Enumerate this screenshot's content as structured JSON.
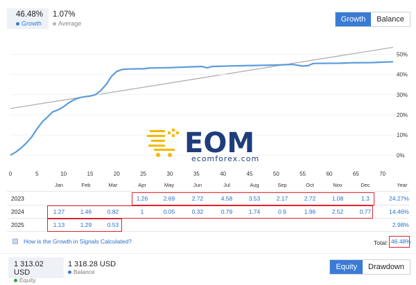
{
  "stats": {
    "growth": {
      "value": "46.48%",
      "label": "Growth"
    },
    "average": {
      "value": "1.07%",
      "label": "Average"
    }
  },
  "top_toggle": {
    "growth": "Growth",
    "balance": "Balance",
    "active": "Growth"
  },
  "bottom_toggle": {
    "equity": "Equity",
    "drawdown": "Drawdown",
    "active": "Equity"
  },
  "colors": {
    "accent": "#3a7bd5",
    "growth_line": "#5b9bdc",
    "trend_line": "#b0b0b0",
    "highlight": "#d9232e"
  },
  "watermark": {
    "text": "EOM",
    "subtext": "ecomforex.com"
  },
  "chart_data": {
    "type": "line",
    "x_ticks": [
      0,
      5,
      10,
      15,
      20,
      25,
      30,
      35,
      40,
      45,
      50,
      55,
      60,
      65,
      70
    ],
    "y_ticks": [
      "50%",
      "40%",
      "30%",
      "20%",
      "10%",
      "0%"
    ],
    "xlim": [
      0,
      72
    ],
    "ylim": [
      -3,
      55
    ],
    "series": [
      {
        "values": [
          [
            0,
            0
          ],
          [
            1,
            1.5
          ],
          [
            2,
            3.5
          ],
          [
            3,
            6
          ],
          [
            4,
            9
          ],
          [
            5,
            13
          ],
          [
            6,
            16.5
          ],
          [
            7,
            19
          ],
          [
            8,
            21.5
          ],
          [
            9,
            22.5
          ],
          [
            10,
            24
          ],
          [
            11,
            26
          ],
          [
            12,
            27.5
          ],
          [
            13,
            28.5
          ],
          [
            14,
            29
          ],
          [
            15,
            29.3
          ],
          [
            16,
            30
          ],
          [
            17,
            32
          ],
          [
            18,
            35
          ],
          [
            19,
            39
          ],
          [
            20,
            41.5
          ],
          [
            21,
            42.5
          ],
          [
            22,
            42.7
          ],
          [
            24,
            42.8
          ],
          [
            25,
            42.8
          ],
          [
            26,
            43.2
          ],
          [
            30,
            43.4
          ],
          [
            34,
            43.8
          ],
          [
            36,
            44
          ],
          [
            37,
            43.3
          ],
          [
            38,
            44
          ],
          [
            42,
            44.3
          ],
          [
            46,
            44.5
          ],
          [
            50,
            44.7
          ],
          [
            53,
            45
          ],
          [
            54,
            44.6
          ],
          [
            55,
            44.2
          ],
          [
            56,
            44.4
          ],
          [
            57,
            45.5
          ],
          [
            62,
            45.6
          ],
          [
            63,
            45.7
          ],
          [
            64,
            45.8
          ],
          [
            68,
            45.9
          ],
          [
            70,
            46.1
          ],
          [
            72,
            46.3
          ]
        ]
      },
      {
        "values": [
          [
            0,
            23.1
          ],
          [
            72,
            53.5
          ]
        ]
      }
    ]
  },
  "months": [
    "Jan",
    "Feb",
    "Mar",
    "Apr",
    "May",
    "Jun",
    "Jul",
    "Aug",
    "Sep",
    "Oct",
    "Nov",
    "Dec",
    "Year"
  ],
  "rows": [
    {
      "year": "2023",
      "cells": [
        "",
        "",
        "",
        "1.26",
        "2.69",
        "2.72",
        "4.58",
        "3.53",
        "2.17",
        "2.72",
        "1.08",
        "1.3"
      ],
      "total": "24.27%"
    },
    {
      "year": "2024",
      "cells": [
        "1.27",
        "1.46",
        "0.82",
        "1",
        "0.05",
        "0.32",
        "0.79",
        "1.74",
        "0.9",
        "1.96",
        "2.52",
        "0.77"
      ],
      "total": "14.46%"
    },
    {
      "year": "2025",
      "cells": [
        "1.13",
        "1.29",
        "0.53",
        "",
        "",
        "",
        "",
        "",
        "",
        "",
        "",
        ""
      ],
      "total": "2.98%"
    }
  ],
  "help": {
    "text": "How is the Growth in Signals Calculated?"
  },
  "total": {
    "label": "Total:",
    "value": "46.48%"
  },
  "footer": {
    "equity": {
      "value": "1 313.02 USD",
      "label": "Equity"
    },
    "balance": {
      "value": "1 318.28 USD",
      "label": "Balance"
    }
  }
}
